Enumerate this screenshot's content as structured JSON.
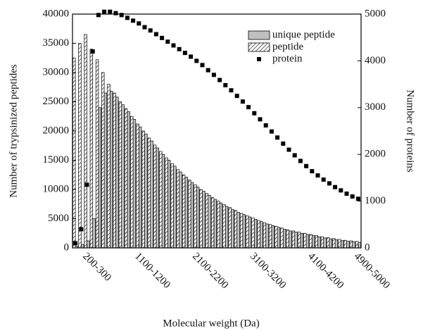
{
  "chart_data": {
    "type": "bar-scatter",
    "x_label": "Molecular weight (Da)",
    "y_label": "Number of trypsinized peptides",
    "y2_label": "Number of proteins",
    "categories": [
      null,
      null,
      "200-300",
      null,
      null,
      null,
      null,
      null,
      null,
      null,
      null,
      "1100-1200",
      null,
      null,
      null,
      null,
      null,
      null,
      null,
      null,
      null,
      "2100-2200",
      null,
      null,
      null,
      null,
      null,
      null,
      null,
      null,
      null,
      "3100-3200",
      null,
      null,
      null,
      null,
      null,
      null,
      null,
      null,
      null,
      "4100-4200",
      null,
      null,
      null,
      null,
      null,
      null,
      null,
      "4900-5000"
    ],
    "ylim": [
      0,
      40000
    ],
    "yticks": [
      0,
      5000,
      10000,
      15000,
      20000,
      25000,
      30000,
      35000,
      40000
    ],
    "y2lim": [
      0,
      5000
    ],
    "y2ticks": [
      0,
      1000,
      2000,
      3000,
      4000,
      5000
    ],
    "legend": "upper right",
    "series": [
      {
        "name": "unique peptide",
        "color": "#c0c0c0",
        "kind": "bar",
        "values": [
          300,
          600,
          1200,
          5000,
          24000,
          26500,
          26800,
          25800,
          24500,
          23300,
          22000,
          20700,
          19500,
          18300,
          17100,
          16000,
          15000,
          14000,
          13000,
          12100,
          11200,
          10400,
          9700,
          9000,
          8300,
          7700,
          7100,
          6600,
          6100,
          5700,
          5300,
          4900,
          4500,
          4100,
          3800,
          3500,
          3200,
          2900,
          2700,
          2500,
          2300,
          2100,
          1900,
          1700,
          1550,
          1400,
          1250,
          1150,
          1050,
          950
        ]
      },
      {
        "name": "peptide",
        "color": "#000000",
        "kind": "hatched-bar",
        "values": [
          32500,
          35000,
          36500,
          34000,
          32200,
          30000,
          28000,
          26500,
          25000,
          23800,
          22500,
          21200,
          20000,
          18800,
          17600,
          16500,
          15400,
          14400,
          13400,
          12500,
          11600,
          10800,
          10000,
          9300,
          8600,
          8000,
          7400,
          6900,
          6400,
          5900,
          5500,
          5100,
          4700,
          4300,
          4000,
          3700,
          3400,
          3100,
          2900,
          2700,
          2500,
          2300,
          2100,
          1900,
          1750,
          1600,
          1450,
          1300,
          1200,
          1100
        ]
      },
      {
        "name": "protein",
        "color": "#000000",
        "kind": "scatter",
        "axis": "y2",
        "values": [
          100,
          400,
          1350,
          4200,
          4980,
          5050,
          5050,
          5020,
          4980,
          4920,
          4860,
          4800,
          4720,
          4650,
          4570,
          4490,
          4410,
          4330,
          4250,
          4170,
          4090,
          4000,
          3910,
          3800,
          3700,
          3590,
          3480,
          3370,
          3250,
          3130,
          3010,
          2880,
          2750,
          2620,
          2490,
          2360,
          2230,
          2100,
          1980,
          1860,
          1750,
          1640,
          1550,
          1460,
          1380,
          1300,
          1230,
          1160,
          1100,
          1050
        ]
      }
    ]
  }
}
